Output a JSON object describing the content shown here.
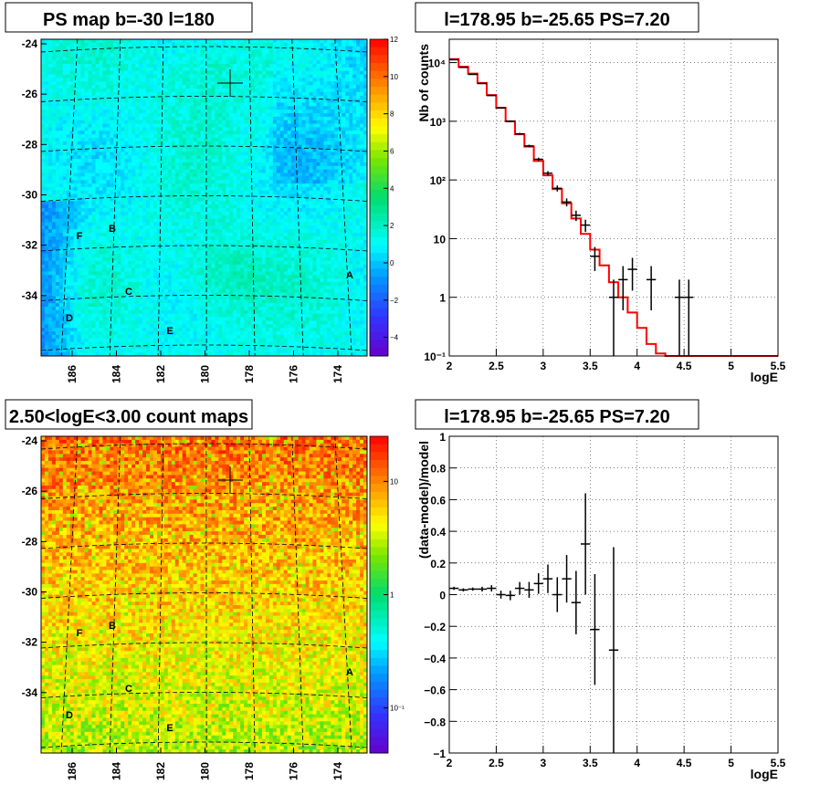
{
  "chart_data": [
    {
      "type": "heatmap",
      "title": "PS map b=-30 l=180",
      "x_ticks": [
        "186",
        "184",
        "182",
        "180",
        "178",
        "176",
        "174"
      ],
      "y_ticks": [
        "-24",
        "-26",
        "-28",
        "-30",
        "-32",
        "-34"
      ],
      "colorbar": {
        "scale": "linear",
        "range": [
          -5,
          12
        ],
        "ticks": [
          "12",
          "10",
          "8",
          "6",
          "4",
          "2",
          "0",
          "−2",
          "−4"
        ]
      },
      "markers": [
        "A",
        "B",
        "C",
        "D",
        "E",
        "F"
      ]
    },
    {
      "type": "line",
      "title": "l=178.95 b=-25.65 PS=7.20",
      "xlabel": "logE",
      "ylabel": "Nb of counts",
      "x_ticks": [
        "2",
        "2.5",
        "3",
        "3.5",
        "4",
        "4.5",
        "5",
        "5.5"
      ],
      "y_ticks": [
        "10⁻¹",
        "1",
        "10",
        "10²",
        "10³",
        "10⁴"
      ],
      "xlim": [
        2,
        5.5
      ],
      "ylim": [
        0.1,
        25000
      ],
      "yscale": "log",
      "grid": true,
      "model_color": "#ff0000",
      "model": [
        {
          "x0": 2.0,
          "x1": 2.1,
          "y": 11500
        },
        {
          "x0": 2.1,
          "x1": 2.2,
          "y": 8500
        },
        {
          "x0": 2.2,
          "x1": 2.3,
          "y": 6500
        },
        {
          "x0": 2.3,
          "x1": 2.4,
          "y": 4500
        },
        {
          "x0": 2.4,
          "x1": 2.5,
          "y": 2800
        },
        {
          "x0": 2.5,
          "x1": 2.6,
          "y": 1700
        },
        {
          "x0": 2.6,
          "x1": 2.7,
          "y": 1000
        },
        {
          "x0": 2.7,
          "x1": 2.8,
          "y": 600
        },
        {
          "x0": 2.8,
          "x1": 2.9,
          "y": 370
        },
        {
          "x0": 2.9,
          "x1": 3.0,
          "y": 210
        },
        {
          "x0": 3.0,
          "x1": 3.1,
          "y": 120
        },
        {
          "x0": 3.1,
          "x1": 3.2,
          "y": 70
        },
        {
          "x0": 3.2,
          "x1": 3.3,
          "y": 40
        },
        {
          "x0": 3.3,
          "x1": 3.4,
          "y": 22
        },
        {
          "x0": 3.4,
          "x1": 3.5,
          "y": 12
        },
        {
          "x0": 3.5,
          "x1": 3.6,
          "y": 6.5
        },
        {
          "x0": 3.6,
          "x1": 3.7,
          "y": 3.5
        },
        {
          "x0": 3.7,
          "x1": 3.8,
          "y": 1.8
        },
        {
          "x0": 3.8,
          "x1": 3.9,
          "y": 1.0
        },
        {
          "x0": 3.9,
          "x1": 4.0,
          "y": 0.55
        },
        {
          "x0": 4.0,
          "x1": 4.1,
          "y": 0.3
        },
        {
          "x0": 4.1,
          "x1": 4.2,
          "y": 0.16
        },
        {
          "x0": 4.2,
          "x1": 4.3,
          "y": 0.11
        },
        {
          "x0": 4.3,
          "x1": 5.5,
          "y": 0.1
        }
      ],
      "points": [
        {
          "x": 2.05,
          "y": 11200,
          "yerr_lo": 105,
          "yerr_hi": 105
        },
        {
          "x": 2.15,
          "y": 8300,
          "yerr_lo": 91,
          "yerr_hi": 91
        },
        {
          "x": 2.25,
          "y": 6300,
          "yerr_lo": 79,
          "yerr_hi": 79
        },
        {
          "x": 2.35,
          "y": 4400,
          "yerr_lo": 66,
          "yerr_hi": 66
        },
        {
          "x": 2.45,
          "y": 2750,
          "yerr_lo": 52,
          "yerr_hi": 52
        },
        {
          "x": 2.55,
          "y": 1690,
          "yerr_lo": 41,
          "yerr_hi": 41
        },
        {
          "x": 2.65,
          "y": 1000,
          "yerr_lo": 32,
          "yerr_hi": 32
        },
        {
          "x": 2.75,
          "y": 610,
          "yerr_lo": 25,
          "yerr_hi": 25
        },
        {
          "x": 2.85,
          "y": 380,
          "yerr_lo": 19,
          "yerr_hi": 19
        },
        {
          "x": 2.95,
          "y": 225,
          "yerr_lo": 15,
          "yerr_hi": 15
        },
        {
          "x": 3.05,
          "y": 130,
          "yerr_lo": 11,
          "yerr_hi": 11
        },
        {
          "x": 3.15,
          "y": 72,
          "yerr_lo": 8.5,
          "yerr_hi": 8.5
        },
        {
          "x": 3.25,
          "y": 42,
          "yerr_lo": 6.5,
          "yerr_hi": 6.5
        },
        {
          "x": 3.35,
          "y": 25,
          "yerr_lo": 5,
          "yerr_hi": 5
        },
        {
          "x": 3.45,
          "y": 17,
          "yerr_lo": 4,
          "yerr_hi": 4
        },
        {
          "x": 3.55,
          "y": 5,
          "yerr_lo": 2.2,
          "yerr_hi": 2.2
        },
        {
          "x": 3.75,
          "y": 1,
          "yerr_lo": 0.9,
          "yerr_hi": 1
        },
        {
          "x": 3.85,
          "y": 2,
          "yerr_lo": 1.4,
          "yerr_hi": 1.4
        },
        {
          "x": 3.95,
          "y": 3,
          "yerr_lo": 1.7,
          "yerr_hi": 1.7
        },
        {
          "x": 4.15,
          "y": 2,
          "yerr_lo": 1.4,
          "yerr_hi": 1.4
        },
        {
          "x": 4.45,
          "y": 1,
          "yerr_lo": 0.9,
          "yerr_hi": 1
        },
        {
          "x": 4.55,
          "y": 1,
          "yerr_lo": 0.9,
          "yerr_hi": 1
        }
      ]
    },
    {
      "type": "heatmap",
      "title": "2.50<logE<3.00 count maps",
      "x_ticks": [
        "186",
        "184",
        "182",
        "180",
        "178",
        "176",
        "174"
      ],
      "y_ticks": [
        "-24",
        "-26",
        "-28",
        "-30",
        "-32",
        "-34"
      ],
      "colorbar": {
        "scale": "log",
        "range": [
          0.04,
          25
        ],
        "ticks": [
          "10",
          "1",
          "10⁻¹"
        ]
      },
      "markers": [
        "A",
        "B",
        "C",
        "D",
        "E",
        "F"
      ]
    },
    {
      "type": "scatter",
      "title": "l=178.95 b=-25.65 PS=7.20",
      "xlabel": "logE",
      "ylabel": "(data-model)/model",
      "x_ticks": [
        "2",
        "2.5",
        "3",
        "3.5",
        "4",
        "4.5",
        "5",
        "5.5"
      ],
      "y_ticks": [
        "1",
        "0.8",
        "0.6",
        "0.4",
        "0.2",
        "0",
        "−0.2",
        "−0.4",
        "−0.6",
        "−0.8",
        "−1"
      ],
      "xlim": [
        2,
        5.5
      ],
      "ylim": [
        -1,
        1
      ],
      "grid": true,
      "points": [
        {
          "x": 2.05,
          "y": 0.04,
          "err": 0.01
        },
        {
          "x": 2.15,
          "y": 0.03,
          "err": 0.01
        },
        {
          "x": 2.25,
          "y": 0.035,
          "err": 0.01
        },
        {
          "x": 2.35,
          "y": 0.035,
          "err": 0.015
        },
        {
          "x": 2.45,
          "y": 0.04,
          "err": 0.02
        },
        {
          "x": 2.55,
          "y": 0.0,
          "err": 0.025
        },
        {
          "x": 2.65,
          "y": -0.005,
          "err": 0.03
        },
        {
          "x": 2.75,
          "y": 0.04,
          "err": 0.04
        },
        {
          "x": 2.85,
          "y": 0.03,
          "err": 0.05
        },
        {
          "x": 2.95,
          "y": 0.07,
          "err": 0.065
        },
        {
          "x": 3.05,
          "y": 0.1,
          "err": 0.09
        },
        {
          "x": 3.15,
          "y": 0.0,
          "err": 0.11
        },
        {
          "x": 3.25,
          "y": 0.1,
          "err": 0.15
        },
        {
          "x": 3.35,
          "y": -0.05,
          "err": 0.2
        },
        {
          "x": 3.45,
          "y": 0.32,
          "err": 0.32
        },
        {
          "x": 3.55,
          "y": -0.22,
          "err": 0.35
        },
        {
          "x": 3.75,
          "y": -0.35,
          "err": 0.65
        }
      ]
    }
  ]
}
